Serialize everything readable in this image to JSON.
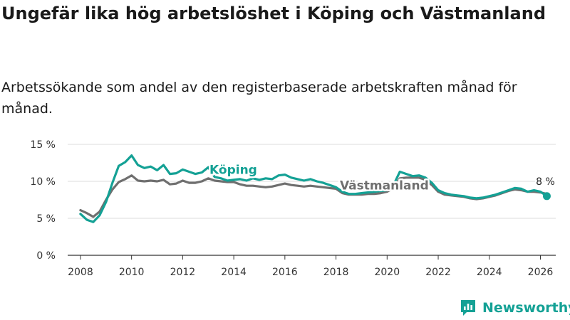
{
  "header": {
    "title": "Ungefär lika hög arbetslöshet i Köping och Västmanland",
    "subtitle": "Arbetssökande som andel av den registerbaserade arbetskraften månad för månad."
  },
  "brand": {
    "name": "Newsworthy",
    "icon": "newsworthy-bar-chart-icon",
    "color": "#14a195"
  },
  "colors": {
    "koping": "#14a195",
    "vastmanland": "#6f6f6f",
    "grid": "#dddddd",
    "axis": "#333333"
  },
  "chart_data": {
    "type": "line",
    "title": "Ungefär lika hög arbetslöshet i Köping och Västmanland",
    "xlabel": "",
    "ylabel": "",
    "xlim": [
      2007.5,
      2026.6
    ],
    "ylim": [
      0,
      15
    ],
    "grid": true,
    "x_ticks": [
      2008,
      2010,
      2012,
      2014,
      2016,
      2018,
      2020,
      2022,
      2024,
      2026
    ],
    "y_ticks": [
      0,
      5,
      10,
      15
    ],
    "y_tick_labels": [
      "0 %",
      "5 %",
      "10 %",
      "15 %"
    ],
    "end_label": "8 %",
    "series": [
      {
        "name": "Köping",
        "label": "Köping",
        "x": [
          2008.0,
          2008.25,
          2008.5,
          2008.75,
          2009.0,
          2009.25,
          2009.5,
          2009.75,
          2010.0,
          2010.25,
          2010.5,
          2010.75,
          2011.0,
          2011.25,
          2011.5,
          2011.75,
          2012.0,
          2012.25,
          2012.5,
          2012.75,
          2013.0,
          2013.25,
          2013.5,
          2013.75,
          2014.0,
          2014.25,
          2014.5,
          2014.75,
          2015.0,
          2015.25,
          2015.5,
          2015.75,
          2016.0,
          2016.25,
          2016.5,
          2016.75,
          2017.0,
          2017.25,
          2017.5,
          2017.75,
          2018.0,
          2018.25,
          2018.5,
          2018.75,
          2019.0,
          2019.25,
          2019.5,
          2019.75,
          2020.0,
          2020.25,
          2020.5,
          2020.75,
          2021.0,
          2021.25,
          2021.5,
          2021.75,
          2022.0,
          2022.25,
          2022.5,
          2022.75,
          2023.0,
          2023.25,
          2023.5,
          2023.75,
          2024.0,
          2024.25,
          2024.5,
          2024.75,
          2025.0,
          2025.25,
          2025.5,
          2025.75,
          2026.0,
          2026.25
        ],
        "values": [
          5.6,
          4.8,
          4.5,
          5.4,
          7.2,
          9.8,
          12.1,
          12.6,
          13.5,
          12.2,
          11.8,
          12.0,
          11.5,
          12.2,
          11.0,
          11.1,
          11.6,
          11.3,
          11.0,
          11.2,
          11.9,
          10.6,
          10.4,
          10.1,
          10.2,
          10.3,
          10.1,
          10.4,
          10.2,
          10.4,
          10.3,
          10.8,
          10.9,
          10.5,
          10.3,
          10.1,
          10.3,
          10.0,
          9.8,
          9.5,
          9.2,
          8.6,
          8.3,
          8.3,
          8.4,
          8.5,
          8.6,
          8.7,
          8.8,
          9.5,
          11.3,
          11.0,
          10.7,
          10.8,
          10.5,
          9.8,
          8.8,
          8.4,
          8.2,
          8.1,
          8.0,
          7.8,
          7.7,
          7.8,
          8.0,
          8.2,
          8.5,
          8.8,
          9.1,
          9.0,
          8.6,
          8.8,
          8.6,
          8.0
        ]
      },
      {
        "name": "Västmanland",
        "label": "Västmanland",
        "x": [
          2008.0,
          2008.25,
          2008.5,
          2008.75,
          2009.0,
          2009.25,
          2009.5,
          2009.75,
          2010.0,
          2010.25,
          2010.5,
          2010.75,
          2011.0,
          2011.25,
          2011.5,
          2011.75,
          2012.0,
          2012.25,
          2012.5,
          2012.75,
          2013.0,
          2013.25,
          2013.5,
          2013.75,
          2014.0,
          2014.25,
          2014.5,
          2014.75,
          2015.0,
          2015.25,
          2015.5,
          2015.75,
          2016.0,
          2016.25,
          2016.5,
          2016.75,
          2017.0,
          2017.25,
          2017.5,
          2017.75,
          2018.0,
          2018.25,
          2018.5,
          2018.75,
          2019.0,
          2019.25,
          2019.5,
          2019.75,
          2020.0,
          2020.25,
          2020.5,
          2020.75,
          2021.0,
          2021.25,
          2021.5,
          2021.75,
          2022.0,
          2022.25,
          2022.5,
          2022.75,
          2023.0,
          2023.25,
          2023.5,
          2023.75,
          2024.0,
          2024.25,
          2024.5,
          2024.75,
          2025.0,
          2025.25,
          2025.5,
          2025.75,
          2026.0,
          2026.25
        ],
        "values": [
          6.1,
          5.7,
          5.2,
          5.9,
          7.5,
          8.9,
          9.9,
          10.3,
          10.8,
          10.1,
          10.0,
          10.1,
          10.0,
          10.2,
          9.6,
          9.7,
          10.1,
          9.8,
          9.8,
          10.0,
          10.4,
          10.1,
          10.0,
          9.9,
          9.9,
          9.6,
          9.4,
          9.4,
          9.3,
          9.2,
          9.3,
          9.5,
          9.7,
          9.5,
          9.4,
          9.3,
          9.4,
          9.3,
          9.2,
          9.1,
          9.0,
          8.4,
          8.2,
          8.2,
          8.2,
          8.3,
          8.3,
          8.4,
          8.6,
          9.1,
          10.4,
          10.5,
          10.5,
          10.5,
          10.2,
          9.5,
          8.6,
          8.2,
          8.1,
          8.0,
          7.9,
          7.7,
          7.6,
          7.7,
          7.9,
          8.1,
          8.4,
          8.7,
          8.9,
          8.8,
          8.6,
          8.6,
          8.5,
          8.3
        ]
      }
    ]
  }
}
